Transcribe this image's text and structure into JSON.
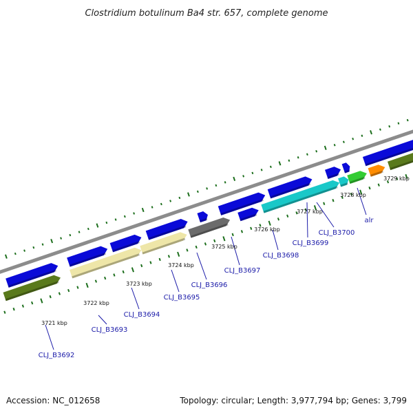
{
  "title": "Clostridium botulinum Ba4 str. 657, complete genome",
  "footer": {
    "accession": "Accession: NC_012658",
    "summary": "Topology: circular; Length: 3,977,794 bp; Genes: 3,799"
  },
  "colors": {
    "backbone": "#8c8c8c",
    "forward_gene": "#0a0ad8",
    "ticks": "#1c6e1c",
    "label": "#1a1aa8"
  },
  "kbp_ticks": [
    "3721 kbp",
    "3722 kbp",
    "3723 kbp",
    "3724 kbp",
    "3725 kbp",
    "3726 kbp",
    "3727 kbp",
    "3728 kbp",
    "3729 kbp"
  ],
  "genes": [
    {
      "label": "CLJ_B3692",
      "color": "#5a7a1c"
    },
    {
      "label": "CLJ_B3693",
      "color": "#eee6a8"
    },
    {
      "label": "CLJ_B3694",
      "color": "#eee6a8"
    },
    {
      "label": "CLJ_B3695",
      "color": "#6b6b6b"
    },
    {
      "label": "CLJ_B3696",
      "color": "#0a0ad8"
    },
    {
      "label": "CLJ_B3697",
      "color": "#19c8c8"
    },
    {
      "label": "CLJ_B3698",
      "color": "#19c8c8"
    },
    {
      "label": "CLJ_B3699",
      "color": "#33cc33"
    },
    {
      "label": "CLJ_B3700",
      "color": "#ff8c00"
    },
    {
      "label": "alr",
      "color": "#5a7a1c"
    }
  ]
}
